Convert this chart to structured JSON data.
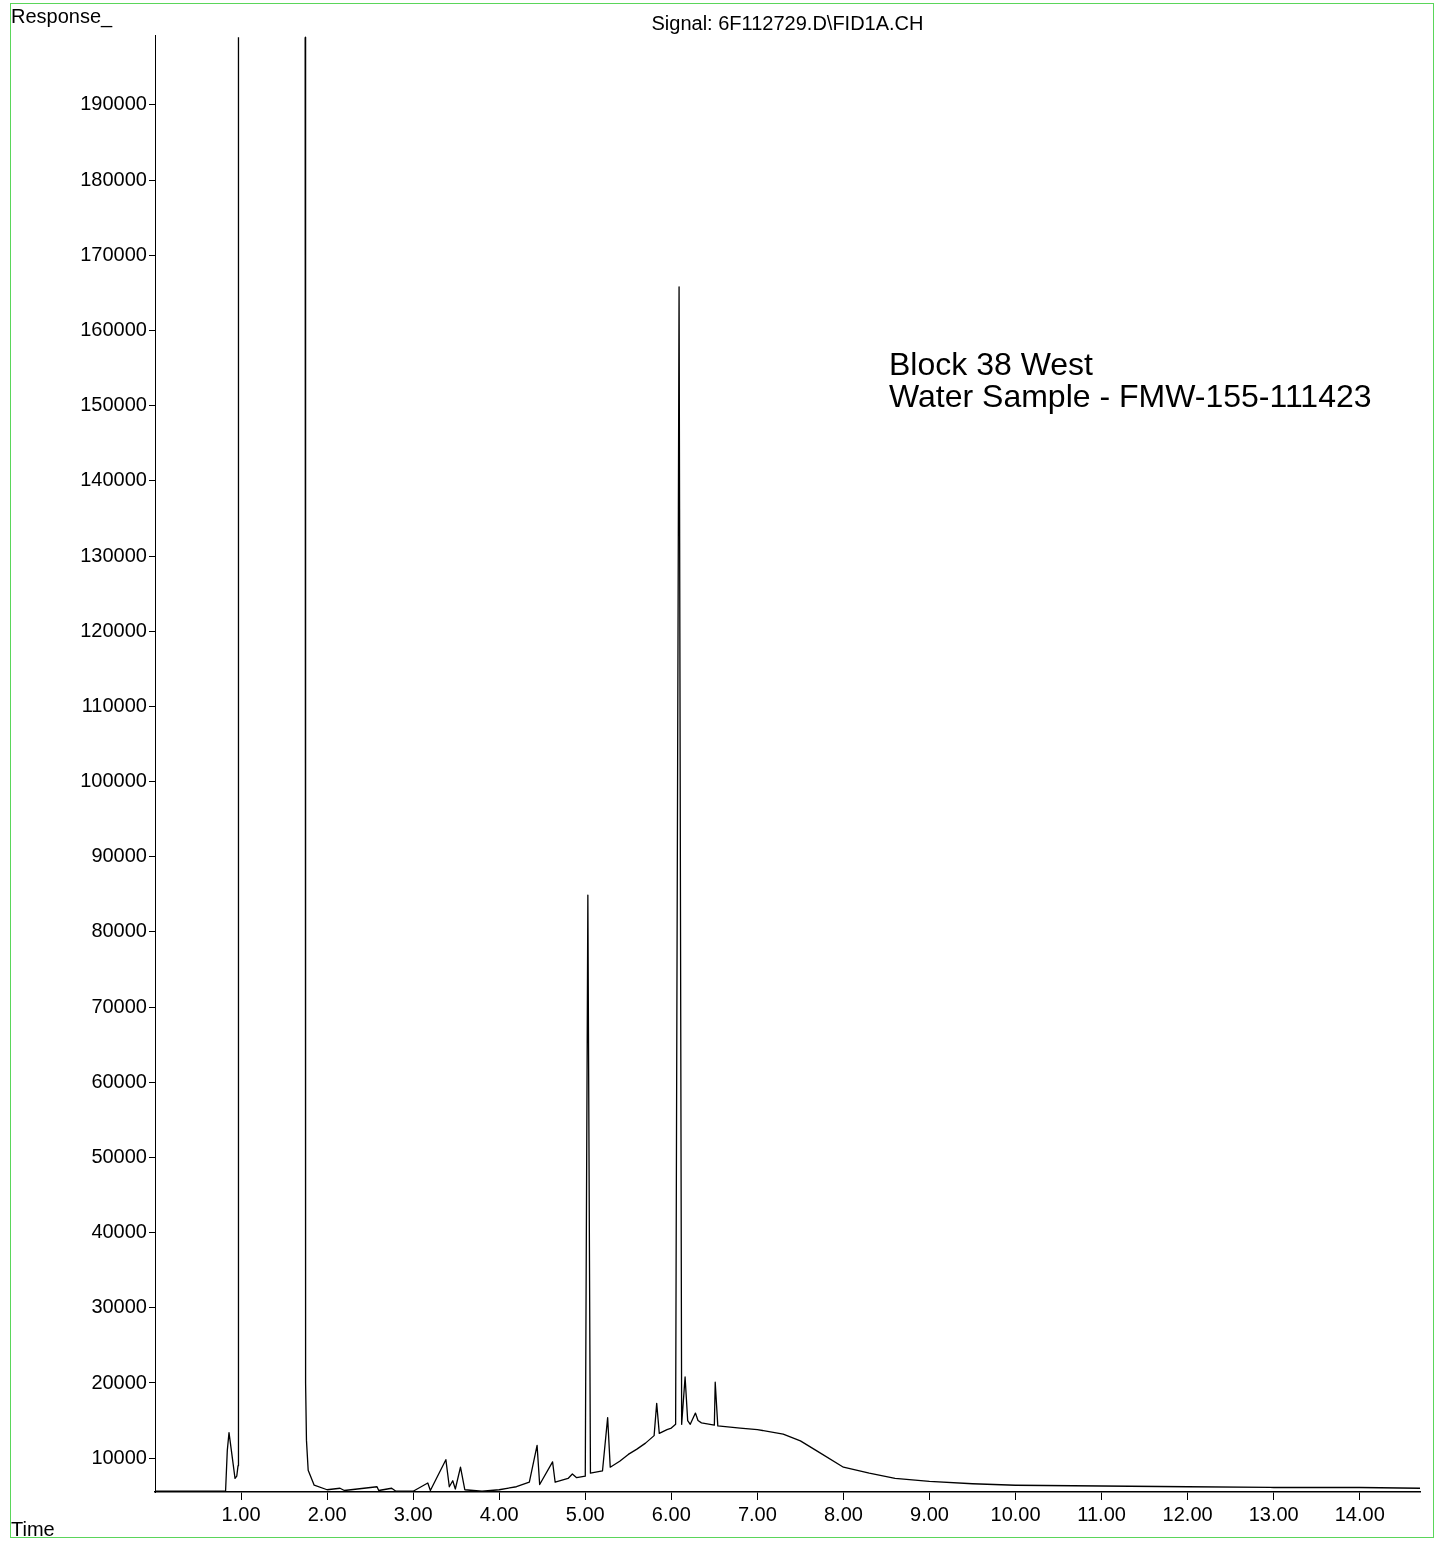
{
  "chart_data": {
    "type": "line",
    "title": "Signal: 6F112729.D\\FID1A.CH",
    "xlabel": "Time",
    "ylabel": "Response_",
    "annotations": [
      "Block 38 West",
      "Water Sample - FMW-155-111423"
    ],
    "x": [
      0,
      0.6,
      0.82,
      0.84,
      0.86,
      0.89,
      0.93,
      0.95,
      0.965,
      0.97,
      1.0,
      1.745,
      1.75,
      1.76,
      1.78,
      1.85,
      2.0,
      2.15,
      2.2,
      2.58,
      2.6,
      2.75,
      2.8,
      3.0,
      3.17,
      3.2,
      3.38,
      3.42,
      3.46,
      3.49,
      3.55,
      3.6,
      3.8,
      4.0,
      4.2,
      4.35,
      4.44,
      4.47,
      4.62,
      4.65,
      4.8,
      4.85,
      4.9,
      5.0,
      5.03,
      5.06,
      5.2,
      5.26,
      5.29,
      5.4,
      5.5,
      5.6,
      5.7,
      5.8,
      5.83,
      5.86,
      5.95,
      6.0,
      6.05,
      6.09,
      6.12,
      6.16,
      6.19,
      6.22,
      6.28,
      6.31,
      6.35,
      6.5,
      6.51,
      6.54,
      6.8,
      7.0,
      7.3,
      7.5,
      7.7,
      8.0,
      8.3,
      8.6,
      9.0,
      9.5,
      10,
      11,
      12,
      13,
      14,
      14.7
    ],
    "series": [
      {
        "color": "#000000",
        "values": [
          5600,
          5600,
          5600,
          11000,
          13400,
          10800,
          7300,
          7600,
          9000,
          199000,
          null,
          199000,
          20000,
          12400,
          8400,
          6400,
          5800,
          6000,
          5700,
          6200,
          5700,
          6000,
          5600,
          5600,
          6700,
          5700,
          9800,
          6200,
          7000,
          5900,
          8800,
          5800,
          5600,
          5800,
          6200,
          6800,
          11700,
          6500,
          9500,
          6800,
          7300,
          7900,
          7400,
          7600,
          84900,
          8000,
          8300,
          15400,
          8800,
          9600,
          10500,
          11200,
          12000,
          13000,
          17300,
          13300,
          13800,
          14000,
          14500,
          165800,
          14500,
          20800,
          15000,
          14500,
          16000,
          15000,
          14700,
          14400,
          20100,
          14300,
          14000,
          13800,
          13200,
          12300,
          10900,
          8800,
          8000,
          7300,
          6900,
          6600,
          6400,
          6300,
          6200,
          6100,
          6100,
          6000
        ]
      }
    ],
    "xlim": [
      0,
      14.7
    ],
    "ylim": [
      5500,
      199300
    ],
    "xticks": [
      {
        "value": 1,
        "label": "1.00"
      },
      {
        "value": 2,
        "label": "2.00"
      },
      {
        "value": 3,
        "label": "3.00"
      },
      {
        "value": 4,
        "label": "4.00"
      },
      {
        "value": 5,
        "label": "5.00"
      },
      {
        "value": 6,
        "label": "6.00"
      },
      {
        "value": 7,
        "label": "7.00"
      },
      {
        "value": 8,
        "label": "8.00"
      },
      {
        "value": 9,
        "label": "9.00"
      },
      {
        "value": 10,
        "label": "10.00"
      },
      {
        "value": 11,
        "label": "11.00"
      },
      {
        "value": 12,
        "label": "12.00"
      },
      {
        "value": 13,
        "label": "13.00"
      },
      {
        "value": 14,
        "label": "14.00"
      }
    ],
    "yticks": [
      10000,
      20000,
      30000,
      40000,
      50000,
      60000,
      70000,
      80000,
      90000,
      100000,
      110000,
      120000,
      130000,
      140000,
      150000,
      160000,
      170000,
      180000,
      190000
    ]
  }
}
